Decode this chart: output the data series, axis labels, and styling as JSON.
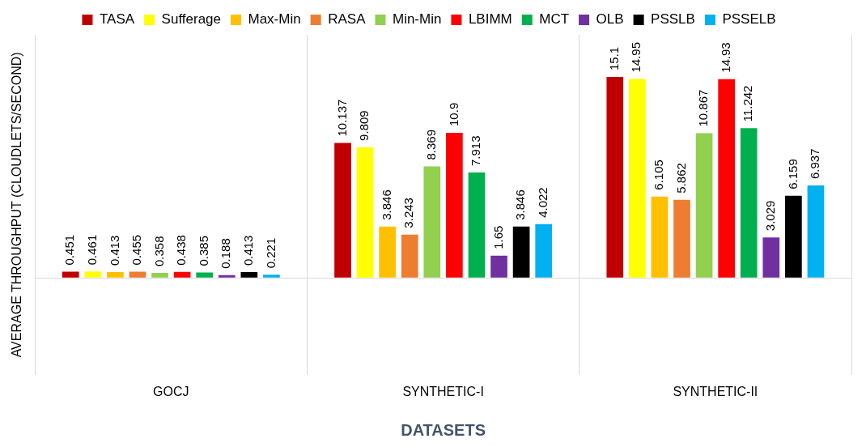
{
  "chart_data": {
    "type": "bar",
    "xlabel": "DATASETS",
    "ylabel": "AVERAGE THROUGHPUT (CLOUDLETS/SECOND)",
    "categories": [
      "GOCJ",
      "SYNTHETIC-I",
      "SYNTHETIC-II"
    ],
    "data_labels": true,
    "legend": "top",
    "grid": "x",
    "series": [
      {
        "name": "TASA",
        "color": "#c00000",
        "values": [
          0.451,
          10.137,
          15.1
        ]
      },
      {
        "name": "Sufferage",
        "color": "#ffff00",
        "values": [
          0.461,
          9.809,
          14.95
        ]
      },
      {
        "name": "Max-Min",
        "color": "#ffc000",
        "values": [
          0.413,
          3.846,
          6.105
        ]
      },
      {
        "name": "RASA",
        "color": "#ed7d31",
        "values": [
          0.455,
          3.243,
          5.862
        ]
      },
      {
        "name": "Min-Min",
        "color": "#92d050",
        "values": [
          0.358,
          8.369,
          10.867
        ]
      },
      {
        "name": "LBIMM",
        "color": "#ff0000",
        "values": [
          0.438,
          10.9,
          14.93
        ]
      },
      {
        "name": "MCT",
        "color": "#00b050",
        "values": [
          0.385,
          7.913,
          11.242
        ]
      },
      {
        "name": "OLB",
        "color": "#7030a0",
        "values": [
          0.188,
          1.65,
          3.029
        ]
      },
      {
        "name": "PSSLB",
        "color": "#000000",
        "values": [
          0.413,
          3.846,
          6.159
        ]
      },
      {
        "name": "PSSELB",
        "color": "#00b0f0",
        "values": [
          0.221,
          4.022,
          6.937
        ]
      }
    ]
  }
}
